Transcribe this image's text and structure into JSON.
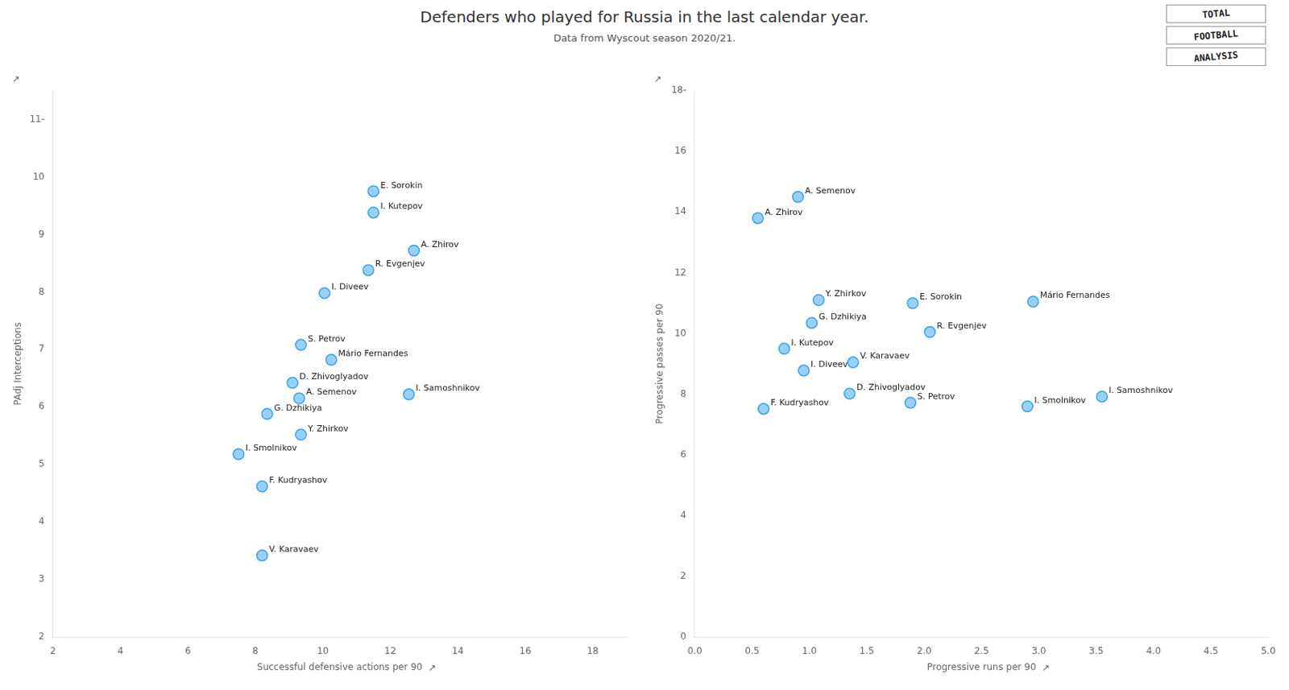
{
  "title": "Defenders who played for Russia in the last calendar year.",
  "subtitle": "Data from Wyscout season 2020/21.",
  "annotations": [
    "TOTAL",
    "FOOTBALL",
    "ANALYSIS"
  ],
  "chart_data": [
    {
      "type": "scatter",
      "x_label": "Successful defensive actions per 90",
      "y_label": "PAdj Interceptions",
      "xlim": [
        2,
        19
      ],
      "ylim": [
        2,
        11.5
      ],
      "xticks": [
        2,
        4,
        6,
        8,
        10,
        12,
        14,
        16,
        18
      ],
      "yticks": [
        2,
        3,
        4,
        5,
        6,
        7,
        8,
        9,
        10,
        {
          "value": 11,
          "label": "11-"
        }
      ],
      "grid": false,
      "annotations": [
        "↗",
        "↗"
      ],
      "point_labels": [
        "E. Sorokin",
        "I. Kutepov",
        "A. Zhirov",
        "R. Evgenjev",
        "I. Diveev",
        "S. Petrov",
        "Mário Fernandes",
        "D. Zhivoglyadov",
        "A. Semenov",
        "I. Samoshnikov",
        "G. Dzhikiya",
        "Y. Zhirkov",
        "I. Smolnikov",
        "F. Kudryashov",
        "V. Karavaev"
      ],
      "x": [
        11.5,
        11.5,
        12.7,
        11.35,
        10.05,
        9.35,
        10.25,
        9.1,
        9.3,
        12.55,
        8.35,
        9.35,
        7.5,
        8.2,
        8.2
      ],
      "values": [
        9.75,
        9.38,
        8.72,
        8.38,
        7.98,
        7.08,
        6.82,
        6.42,
        6.15,
        6.22,
        5.88,
        5.52,
        5.18,
        4.62,
        3.42
      ]
    },
    {
      "type": "scatter",
      "x_label": "Progressive runs per 90",
      "y_label": "Progressive passes per 90",
      "xlim": [
        0.0,
        5.0
      ],
      "ylim": [
        0,
        18
      ],
      "xticks": [
        {
          "value": 0,
          "label": "0.0"
        },
        0.5,
        {
          "value": 1,
          "label": "1.0"
        },
        1.5,
        {
          "value": 2,
          "label": "2.0"
        },
        2.5,
        {
          "value": 3,
          "label": "3.0"
        },
        3.5,
        {
          "value": 4,
          "label": "4.0"
        },
        4.5,
        {
          "value": 5,
          "label": "5.0"
        }
      ],
      "yticks": [
        0,
        2,
        4,
        6,
        8,
        10,
        12,
        14,
        16,
        {
          "value": 18,
          "label": "18-"
        }
      ],
      "grid": false,
      "annotations": [
        "↗",
        "↗"
      ],
      "point_labels": [
        "A. Semenov",
        "A. Zhirov",
        "Y. Zhirkov",
        "E. Sorokin",
        "G. Dzhikiya",
        "Mário Fernandes",
        "I. Kutepov",
        "R. Evgenjev",
        "V. Karavaev",
        "I. Diveev",
        "D. Zhivoglyadov",
        "S. Petrov",
        "F. Kudryashov",
        "I. Samoshnikov",
        "I. Smolnikov"
      ],
      "x": [
        0.9,
        0.55,
        1.08,
        1.9,
        1.02,
        2.95,
        0.78,
        2.05,
        1.38,
        0.95,
        1.35,
        1.88,
        0.6,
        3.55,
        2.9
      ],
      "values": [
        14.5,
        13.8,
        11.1,
        11.0,
        10.35,
        11.05,
        9.5,
        10.05,
        9.05,
        8.78,
        8.02,
        7.72,
        7.52,
        7.92,
        7.6
      ]
    }
  ]
}
